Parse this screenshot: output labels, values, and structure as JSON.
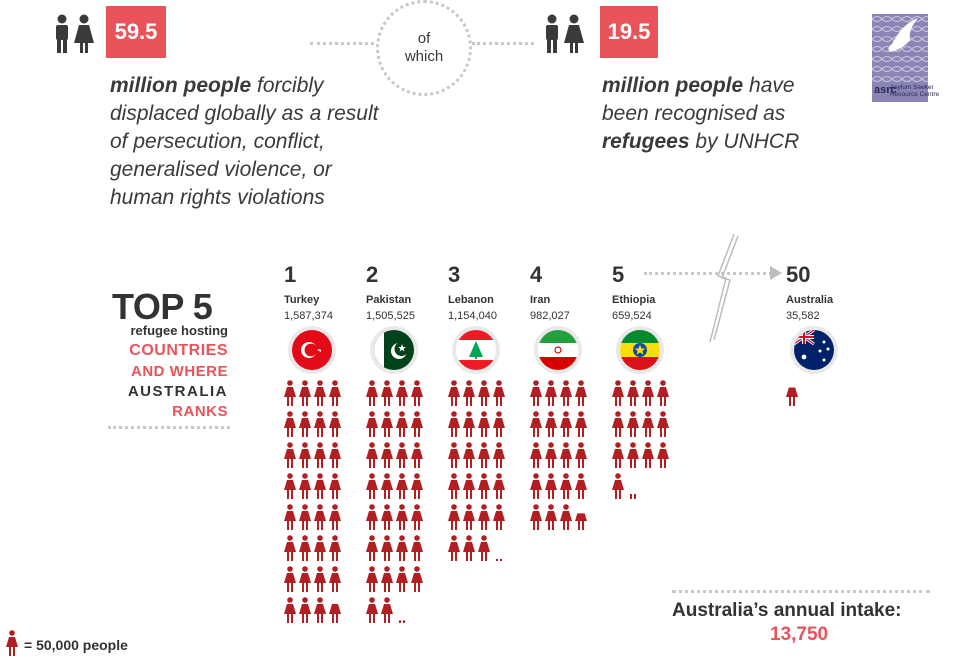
{
  "top": {
    "left_stat": "59.5",
    "right_stat": "19.5",
    "connector": "of which",
    "left_text_bold": "million people",
    "left_text_rest": "forcibly displaced globally as a result of persecution, conflict, generalised violence, or human rights violations",
    "right_text_bold1": "million people",
    "right_text_mid": "have been recognised as",
    "right_text_bold2": "refugees",
    "right_text_end": "by UNHCR"
  },
  "logo": {
    "mark": "asrc",
    "line1": "Asylum Seeker",
    "line2": "Resource Centre"
  },
  "sidebar": {
    "title": "TOP 5",
    "line1": "refugee hosting",
    "line2": "COUNTRIES",
    "line3": "AND WHERE",
    "line4": "AUSTRALIA",
    "line5": "RANKS"
  },
  "chart_data": {
    "type": "pictograph",
    "unit": "= 50,000 people",
    "countries": [
      {
        "rank": "1",
        "name": "Turkey",
        "value": "1,587,374",
        "icons": 31.75,
        "flag": "turkey"
      },
      {
        "rank": "2",
        "name": "Pakistan",
        "value": "1,505,525",
        "icons": 30.1,
        "flag": "pakistan"
      },
      {
        "rank": "3",
        "name": "Lebanon",
        "value": "1,154,040",
        "icons": 23.08,
        "flag": "lebanon"
      },
      {
        "rank": "4",
        "name": "Iran",
        "value": "982,027",
        "icons": 19.64,
        "flag": "iran"
      },
      {
        "rank": "5",
        "name": "Ethiopia",
        "value": "659,524",
        "icons": 13.19,
        "flag": "ethiopia"
      },
      {
        "rank": "50",
        "name": "Australia",
        "value": "35,582",
        "icons": 0.71,
        "flag": "australia"
      }
    ]
  },
  "intake": {
    "label": "Australia’s annual intake:",
    "value": "13,750"
  },
  "legend": {
    "text": "= 50,000 people"
  },
  "colors": {
    "accent": "#e8545a",
    "figure": "#b21f23",
    "dots": "#c8c8c8",
    "text": "#3a3a3a"
  }
}
